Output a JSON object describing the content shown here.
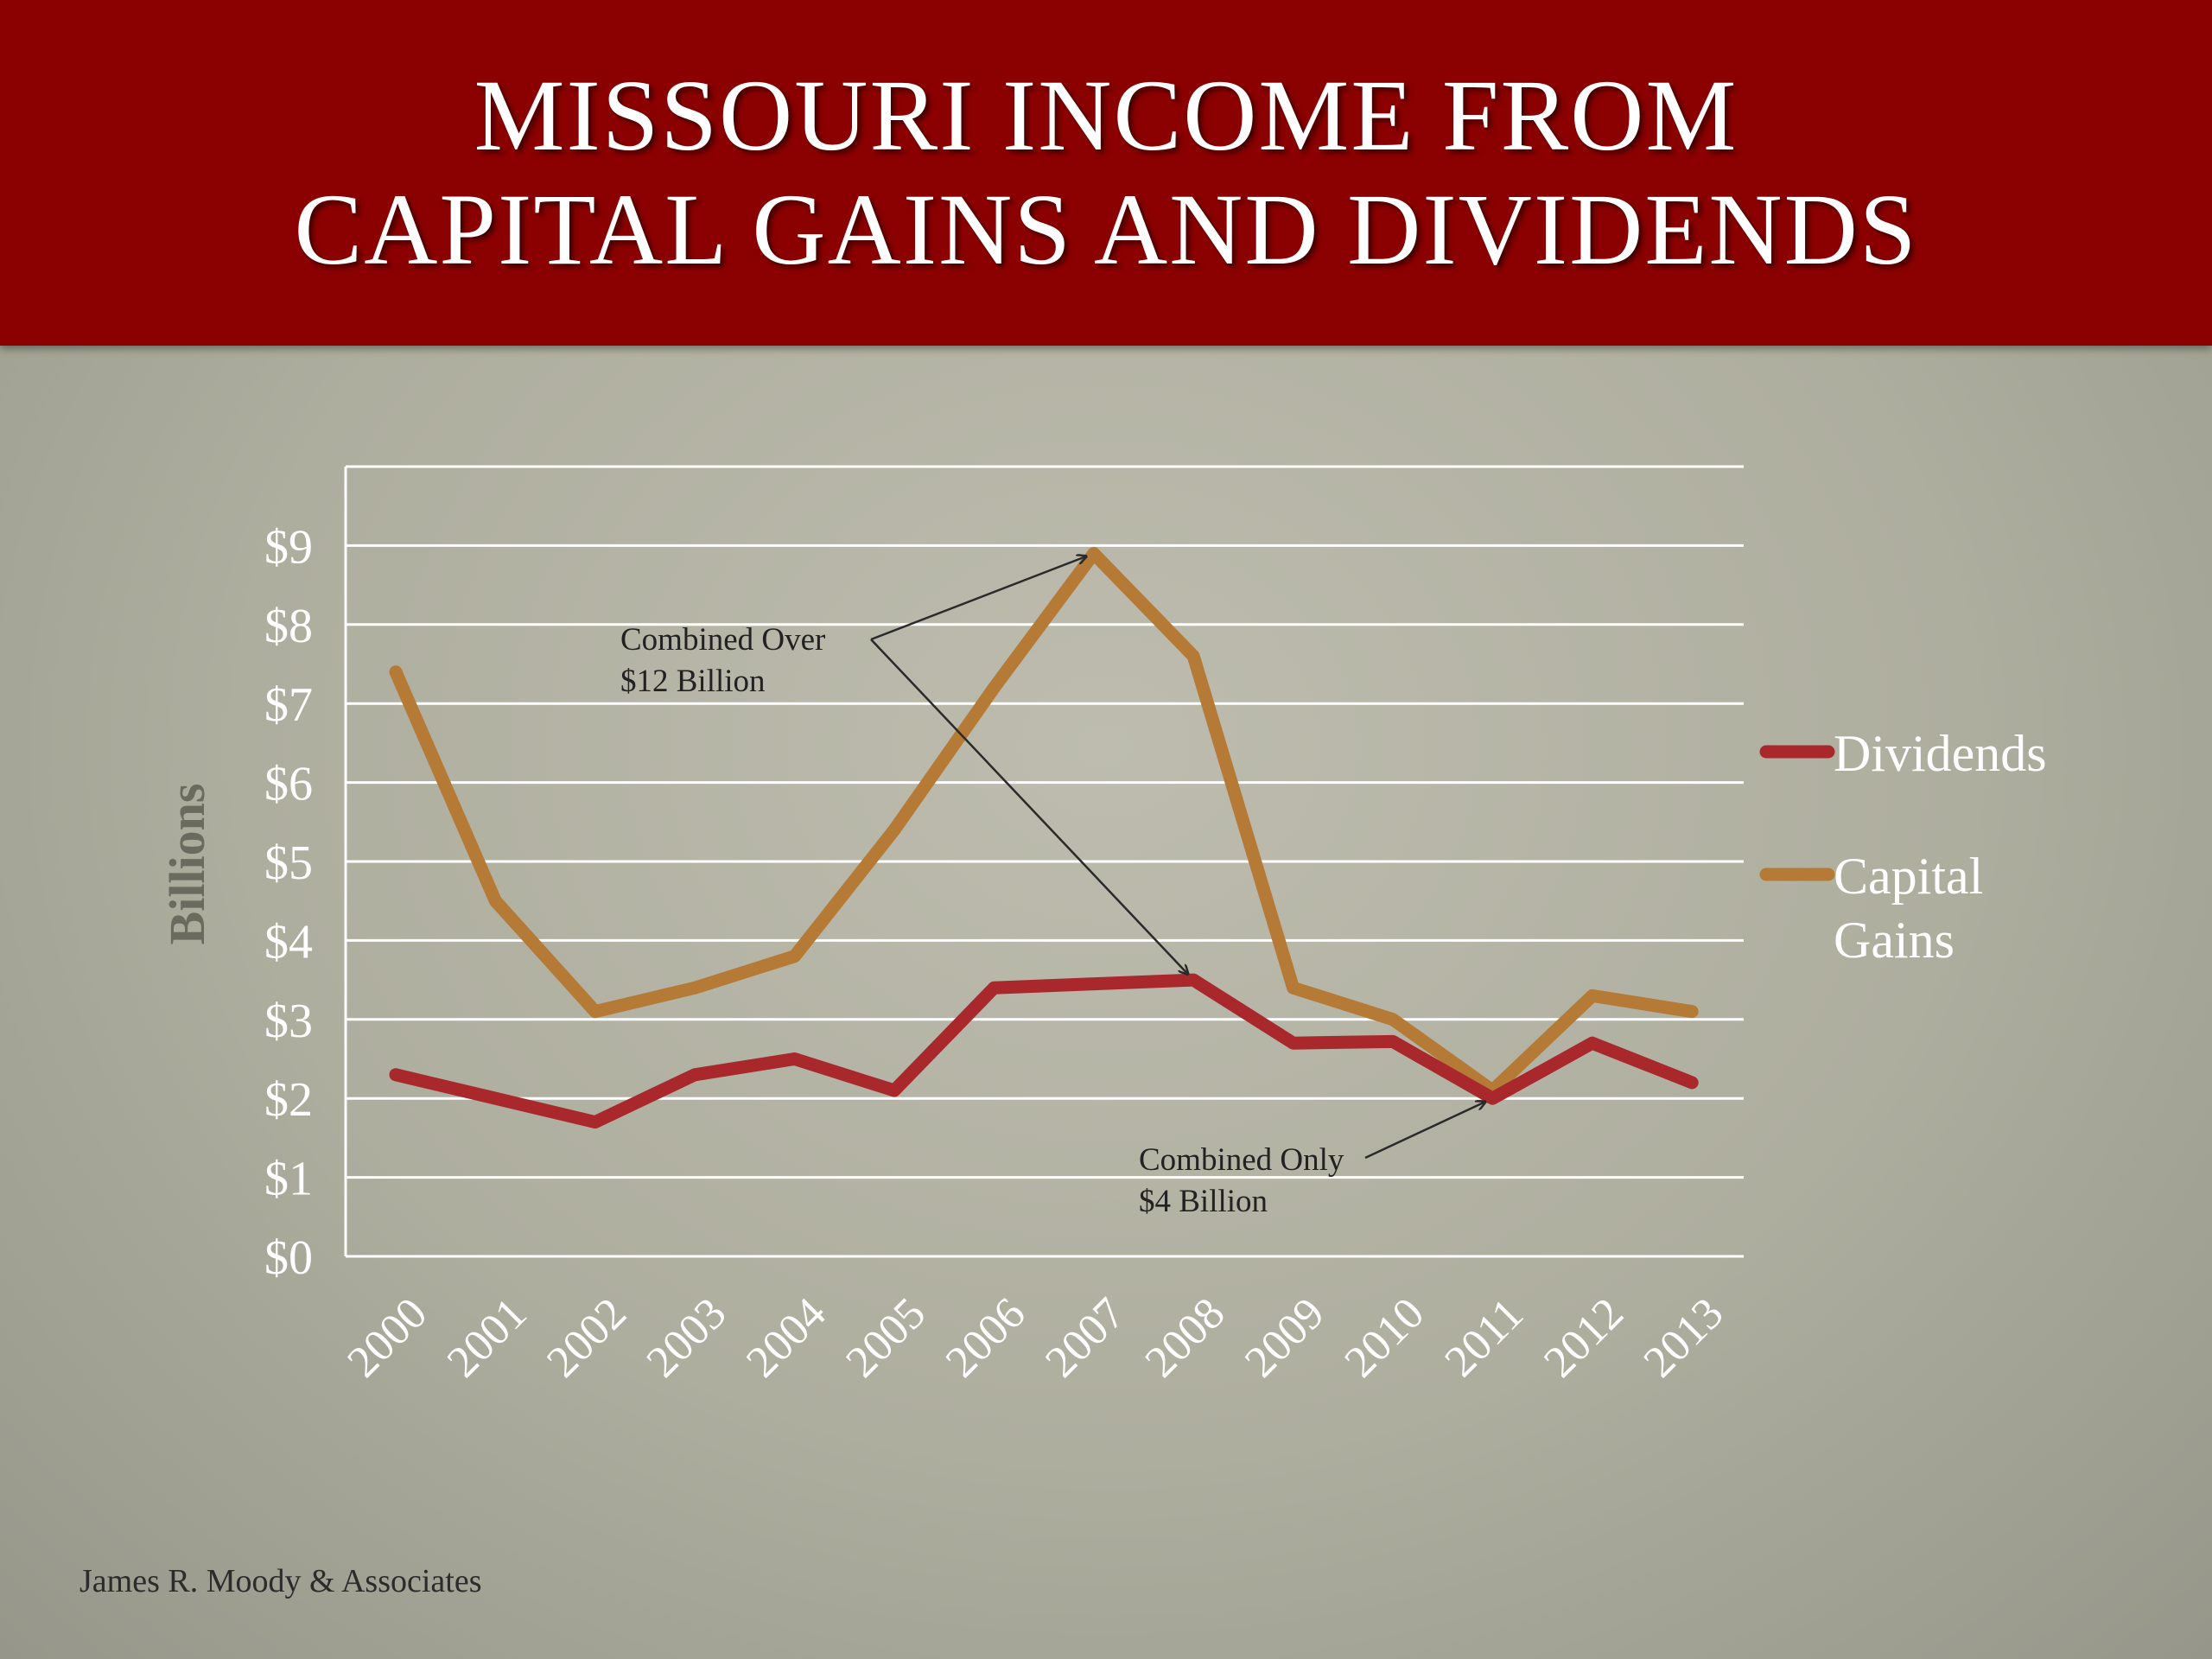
{
  "title": {
    "line1": "Missouri Income from",
    "line2": "Capital Gains and Dividends"
  },
  "footer": "James R. Moody & Associates",
  "colors": {
    "banner": "#8b0000",
    "dividends": "#a8282c",
    "capital_gains": "#b57a35",
    "gridline": "#ffffff",
    "arrow": "#2a2a2a"
  },
  "chart_data": {
    "type": "line",
    "title": "Missouri Income from Capital Gains and Dividends",
    "xlabel": "",
    "ylabel": "Billions",
    "categories": [
      "2000",
      "2001",
      "2002",
      "2003",
      "2004",
      "2005",
      "2006",
      "2007",
      "2008",
      "2009",
      "2010",
      "2011",
      "2012",
      "2013"
    ],
    "ylim": [
      0,
      10
    ],
    "y_ticks": [
      "$0",
      "$1",
      "$2",
      "$3",
      "$4",
      "$5",
      "$6",
      "$7",
      "$8",
      "$9"
    ],
    "grid": true,
    "legend_position": "right",
    "series": [
      {
        "name": "Dividends",
        "color": "#a8282c",
        "values": [
          2.3,
          2.0,
          1.7,
          2.3,
          2.5,
          2.1,
          3.4,
          3.45,
          3.5,
          2.7,
          2.72,
          2.0,
          2.7,
          2.2
        ]
      },
      {
        "name": "Capital Gains",
        "color": "#b57a35",
        "values": [
          7.4,
          4.5,
          3.1,
          3.4,
          3.8,
          5.4,
          7.2,
          8.9,
          7.6,
          3.4,
          3.0,
          2.1,
          3.3,
          3.1
        ]
      }
    ],
    "legend": [
      {
        "lines": [
          "Dividends"
        ]
      },
      {
        "lines": [
          "Capital",
          "Gains"
        ]
      }
    ],
    "annotations": [
      {
        "lines": [
          "Combined Over",
          "$12 Billion"
        ],
        "targets": [
          {
            "series": 1,
            "index": 7
          },
          {
            "series": 0,
            "index": 8
          }
        ]
      },
      {
        "lines": [
          "Combined Only",
          "$4 Billion"
        ],
        "targets": [
          {
            "series": 0,
            "index": 11
          }
        ]
      }
    ]
  }
}
